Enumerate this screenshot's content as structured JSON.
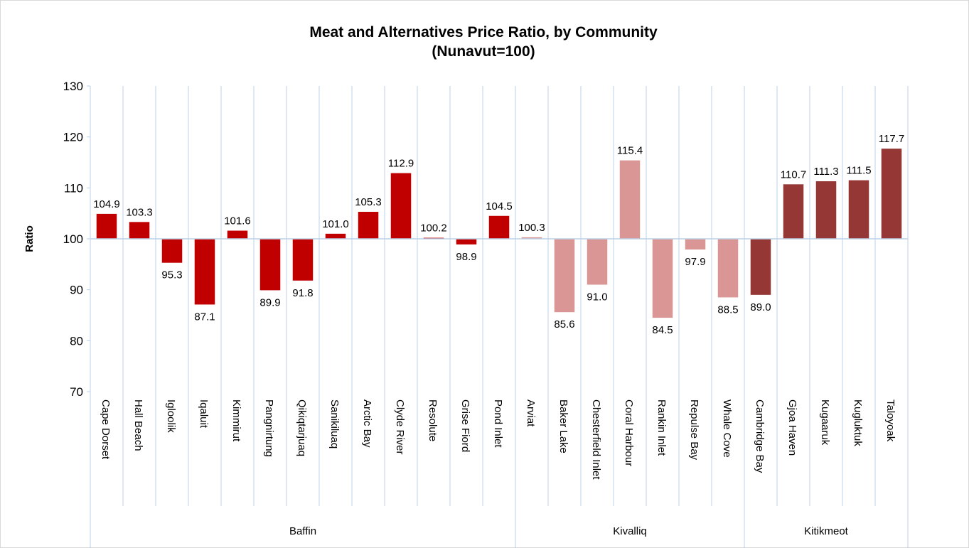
{
  "chart_data": {
    "type": "bar",
    "title": "Meat and Alternatives Price Ratio, by Community",
    "subtitle": "(Nunavut=100)",
    "ylabel": "Ratio",
    "ylim": [
      70,
      130
    ],
    "yticks": [
      70,
      80,
      90,
      100,
      110,
      120,
      130
    ],
    "baseline": 100,
    "groups": [
      {
        "name": "Baffin",
        "color": "#c00000",
        "categories": [
          "Cape Dorset",
          "Hall Beach",
          "Igloolik",
          "Iqaluit",
          "Kimmirut",
          "Pangnirtung",
          "Qikiqtarjuaq",
          "Sanikiluaq",
          "Arctic Bay",
          "Clyde River",
          "Resolute",
          "Grise Fiord",
          "Pond Inlet"
        ],
        "values": [
          104.9,
          103.3,
          95.3,
          87.1,
          101.6,
          89.9,
          91.8,
          101.0,
          105.3,
          112.9,
          100.2,
          98.9,
          104.5
        ],
        "value_labels": [
          "104.9",
          "103.3",
          "95.3",
          "87.1",
          "101.6",
          "89.9",
          "91.8",
          "101.0",
          "105.3",
          "112.9",
          "100.2",
          "98.9",
          "104.5"
        ]
      },
      {
        "name": "Kivalliq",
        "color": "#d99694",
        "categories": [
          "Arviat",
          "Baker Lake",
          "Chesterfield Inlet",
          "Coral Harbour",
          "Rankin Inlet",
          "Repulse Bay",
          "Whale Cove"
        ],
        "values": [
          100.3,
          85.6,
          91.0,
          115.4,
          84.5,
          97.9,
          88.5
        ],
        "value_labels": [
          "100.3",
          "85.6",
          "91.0",
          "115.4",
          "84.5",
          "97.9",
          "88.5"
        ]
      },
      {
        "name": "Kitikmeot",
        "color": "#953735",
        "categories": [
          "Cambridge Bay",
          "Gjoa Haven",
          "Kugaaruk",
          "Kugluktuk",
          "Taloyoak"
        ],
        "values": [
          89.0,
          110.7,
          111.3,
          111.5,
          117.7
        ],
        "value_labels": [
          "89.0",
          "110.7",
          "111.3",
          "111.5",
          "117.7"
        ]
      }
    ]
  }
}
